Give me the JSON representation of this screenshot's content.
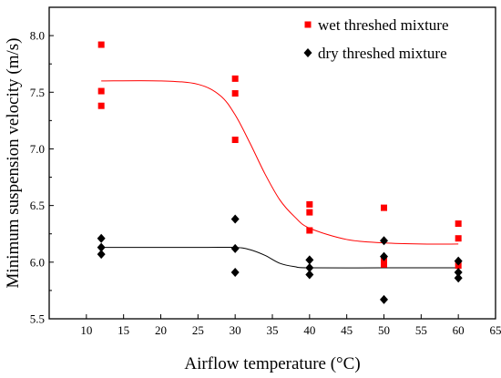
{
  "chart_data": {
    "type": "scatter",
    "xlabel": "Airflow temperature (°C)",
    "ylabel": "Minimum suspension  velocity (m/s)",
    "xlim": [
      5,
      65
    ],
    "ylim": [
      5.5,
      8.25
    ],
    "xticks": [
      10,
      15,
      20,
      25,
      30,
      35,
      40,
      45,
      50,
      55,
      60,
      65
    ],
    "yticks": [
      5.5,
      6.0,
      6.5,
      7.0,
      7.5,
      8.0
    ],
    "xtick_labels": [
      "10",
      "15",
      "20",
      "25",
      "30",
      "35",
      "40",
      "45",
      "50",
      "55",
      "60",
      "65"
    ],
    "ytick_labels": [
      "5.5",
      "6.0",
      "6.5",
      "7.0",
      "7.5",
      "8.0"
    ],
    "grid": false,
    "legend_position": "top-right",
    "series": [
      {
        "name": "wet threshed mixture",
        "marker": "square",
        "color": "#ff0000",
        "points": [
          [
            12,
            7.92
          ],
          [
            12,
            7.51
          ],
          [
            12,
            7.38
          ],
          [
            30,
            7.62
          ],
          [
            30,
            7.49
          ],
          [
            30,
            7.08
          ],
          [
            40,
            6.51
          ],
          [
            40,
            6.44
          ],
          [
            40,
            6.28
          ],
          [
            50,
            6.48
          ],
          [
            50,
            6.01
          ],
          [
            50,
            5.98
          ],
          [
            60,
            6.34
          ],
          [
            60,
            6.21
          ],
          [
            60,
            5.97
          ]
        ],
        "fit": [
          [
            12,
            7.6
          ],
          [
            20,
            7.6
          ],
          [
            25,
            7.57
          ],
          [
            28,
            7.47
          ],
          [
            30,
            7.3
          ],
          [
            32,
            7.05
          ],
          [
            34,
            6.78
          ],
          [
            36,
            6.55
          ],
          [
            38,
            6.4
          ],
          [
            40,
            6.3
          ],
          [
            45,
            6.2
          ],
          [
            50,
            6.17
          ],
          [
            55,
            6.16
          ],
          [
            60,
            6.16
          ]
        ]
      },
      {
        "name": "dry threshed mixture",
        "marker": "diamond",
        "color": "#000000",
        "points": [
          [
            12,
            6.21
          ],
          [
            12,
            6.13
          ],
          [
            12,
            6.07
          ],
          [
            30,
            6.38
          ],
          [
            30,
            6.12
          ],
          [
            30,
            5.91
          ],
          [
            40,
            6.02
          ],
          [
            40,
            5.95
          ],
          [
            40,
            5.89
          ],
          [
            50,
            6.19
          ],
          [
            50,
            6.05
          ],
          [
            50,
            5.67
          ],
          [
            60,
            6.01
          ],
          [
            60,
            5.91
          ],
          [
            60,
            5.86
          ]
        ],
        "fit": [
          [
            12,
            6.13
          ],
          [
            25,
            6.13
          ],
          [
            30,
            6.13
          ],
          [
            32,
            6.11
          ],
          [
            34,
            6.06
          ],
          [
            36,
            5.99
          ],
          [
            38,
            5.96
          ],
          [
            40,
            5.95
          ],
          [
            50,
            5.95
          ],
          [
            60,
            5.95
          ]
        ]
      }
    ]
  }
}
